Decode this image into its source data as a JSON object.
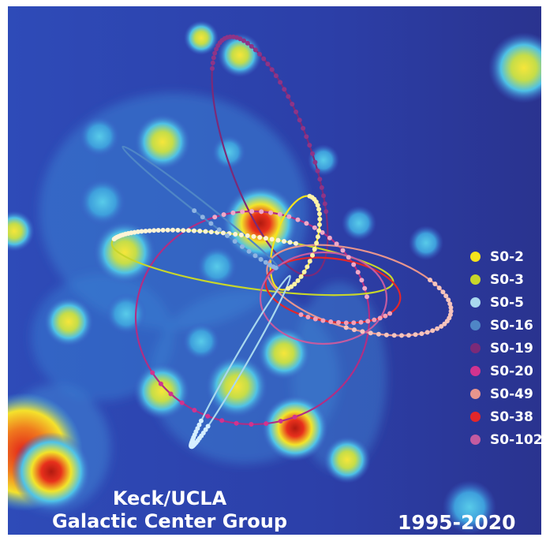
{
  "credit": {
    "line1": "Keck/UCLA",
    "line2": "Galactic Center Group"
  },
  "years": "1995-2020",
  "legend": [
    {
      "label": "S0-2",
      "color": "#f5e31c"
    },
    {
      "label": "S0-3",
      "color": "#c8d62a"
    },
    {
      "label": "S0-5",
      "color": "#a9d8ee"
    },
    {
      "label": "S0-16",
      "color": "#4f86c6"
    },
    {
      "label": "S0-19",
      "color": "#7b2a78"
    },
    {
      "label": "S0-20",
      "color": "#d1338f"
    },
    {
      "label": "S0-49",
      "color": "#e8958d"
    },
    {
      "label": "S0-38",
      "color": "#e3262a"
    },
    {
      "label": "S0-102",
      "color": "#c45ba0"
    }
  ]
}
